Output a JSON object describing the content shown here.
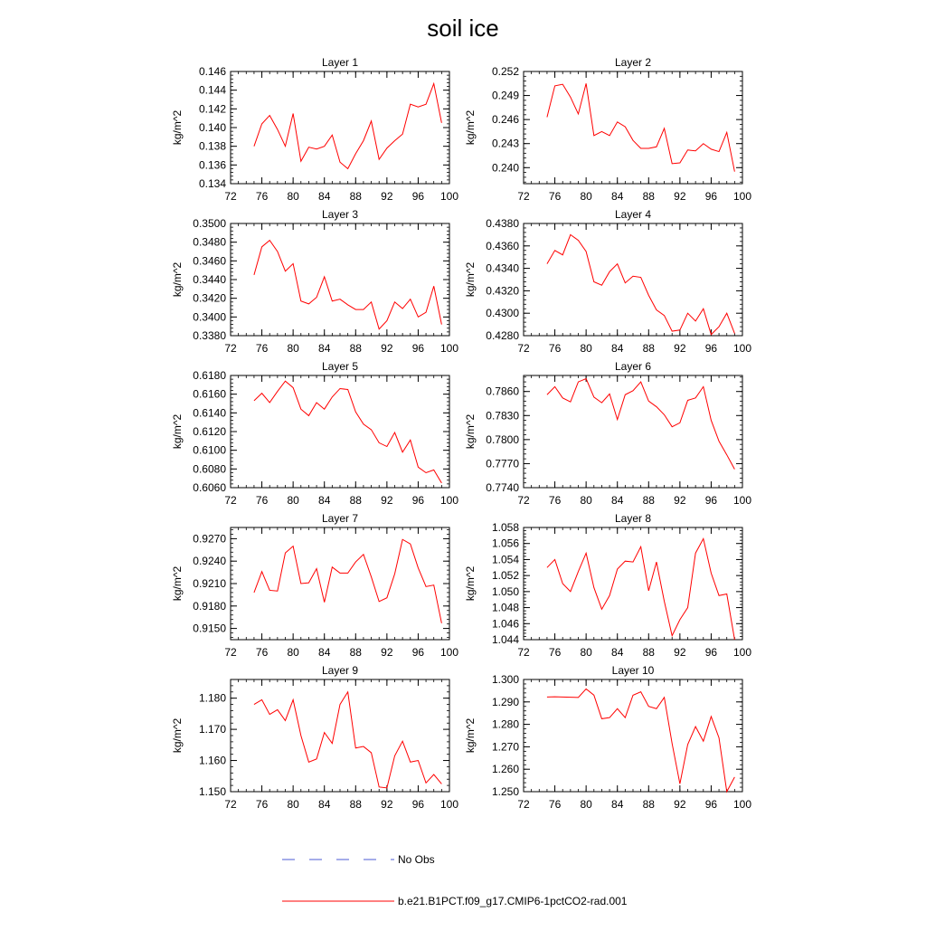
{
  "figure": {
    "title": "soil ice"
  },
  "legend": {
    "items": [
      {
        "label": "No Obs",
        "color": "#4b5bd6",
        "dash": "dashed"
      },
      {
        "label": "b.e21.B1PCT.f09_g17.CMIP6-1pctCO2-rad.001",
        "color": "#ff0000",
        "dash": "solid"
      }
    ]
  },
  "chart_data": [
    {
      "type": "line",
      "title": "Layer 1",
      "ylabel": "kg/m^2",
      "xlim": [
        72,
        100
      ],
      "ylim": [
        0.134,
        0.146
      ],
      "xticks": [
        72,
        76,
        80,
        84,
        88,
        92,
        96,
        100
      ],
      "xtick_labels": [
        "72",
        "76",
        "80",
        "84",
        "88",
        "92",
        "96",
        "100"
      ],
      "yticks": [
        0.134,
        0.136,
        0.138,
        0.14,
        0.142,
        0.144,
        0.146
      ],
      "ytick_labels": [
        "0.134",
        "0.136",
        "0.138",
        "0.140",
        "0.142",
        "0.144",
        "0.146"
      ],
      "x": [
        75,
        76,
        77,
        78,
        79,
        80,
        81,
        82,
        83,
        84,
        85,
        86,
        87,
        88,
        89,
        90,
        91,
        92,
        93,
        94,
        95,
        96,
        97,
        98,
        99
      ],
      "series": [
        {
          "name": "b.e21.B1PCT.f09_g17.CMIP6-1pctCO2-rad.001",
          "color": "#ff0000",
          "values": [
            0.138,
            0.1404,
            0.1413,
            0.1398,
            0.138,
            0.1415,
            0.1364,
            0.1379,
            0.1377,
            0.138,
            0.1392,
            0.1363,
            0.1356,
            0.1372,
            0.1386,
            0.1407,
            0.1366,
            0.1378,
            0.1386,
            0.1393,
            0.1425,
            0.1422,
            0.1425,
            0.1447,
            0.1405
          ]
        }
      ]
    },
    {
      "type": "line",
      "title": "Layer 2",
      "ylabel": "kg/m^2",
      "xlim": [
        72,
        100
      ],
      "ylim": [
        0.238,
        0.252
      ],
      "xticks": [
        72,
        76,
        80,
        84,
        88,
        92,
        96,
        100
      ],
      "xtick_labels": [
        "72",
        "76",
        "80",
        "84",
        "88",
        "92",
        "96",
        "100"
      ],
      "yticks": [
        0.24,
        0.243,
        0.246,
        0.249,
        0.252
      ],
      "ytick_labels": [
        "0.240",
        "0.243",
        "0.246",
        "0.249",
        "0.252"
      ],
      "x": [
        75,
        76,
        77,
        78,
        79,
        80,
        81,
        82,
        83,
        84,
        85,
        86,
        87,
        88,
        89,
        90,
        91,
        92,
        93,
        94,
        95,
        96,
        97,
        98,
        99
      ],
      "series": [
        {
          "name": "b.e21.B1PCT.f09_g17.CMIP6-1pctCO2-rad.001",
          "color": "#ff0000",
          "values": [
            0.2463,
            0.2502,
            0.2504,
            0.2488,
            0.2467,
            0.2505,
            0.244,
            0.2445,
            0.244,
            0.2457,
            0.2451,
            0.2434,
            0.2424,
            0.2424,
            0.2426,
            0.2449,
            0.2405,
            0.2406,
            0.2422,
            0.2421,
            0.243,
            0.2423,
            0.242,
            0.2444,
            0.2395
          ]
        }
      ]
    },
    {
      "type": "line",
      "title": "Layer 3",
      "ylabel": "kg/m^2",
      "xlim": [
        72,
        100
      ],
      "ylim": [
        0.338,
        0.35
      ],
      "xticks": [
        72,
        76,
        80,
        84,
        88,
        92,
        96,
        100
      ],
      "xtick_labels": [
        "72",
        "76",
        "80",
        "84",
        "88",
        "92",
        "96",
        "100"
      ],
      "yticks": [
        0.338,
        0.34,
        0.342,
        0.344,
        0.346,
        0.348,
        0.35
      ],
      "ytick_labels": [
        "0.3380",
        "0.3400",
        "0.3420",
        "0.3440",
        "0.3460",
        "0.3480",
        "0.3500"
      ],
      "x": [
        75,
        76,
        77,
        78,
        79,
        80,
        81,
        82,
        83,
        84,
        85,
        86,
        87,
        88,
        89,
        90,
        91,
        92,
        93,
        94,
        95,
        96,
        97,
        98,
        99
      ],
      "series": [
        {
          "name": "b.e21.B1PCT.f09_g17.CMIP6-1pctCO2-rad.001",
          "color": "#ff0000",
          "values": [
            0.3445,
            0.3475,
            0.3482,
            0.347,
            0.3449,
            0.3457,
            0.3417,
            0.3414,
            0.3421,
            0.3443,
            0.3417,
            0.3419,
            0.3413,
            0.3408,
            0.3408,
            0.3416,
            0.3387,
            0.3396,
            0.3416,
            0.3409,
            0.3419,
            0.34,
            0.3405,
            0.3433,
            0.3392
          ]
        }
      ]
    },
    {
      "type": "line",
      "title": "Layer 4",
      "ylabel": "kg/m^2",
      "xlim": [
        72,
        100
      ],
      "ylim": [
        0.428,
        0.438
      ],
      "xticks": [
        72,
        76,
        80,
        84,
        88,
        92,
        96,
        100
      ],
      "xtick_labels": [
        "72",
        "76",
        "80",
        "84",
        "88",
        "92",
        "96",
        "100"
      ],
      "yticks": [
        0.428,
        0.43,
        0.432,
        0.434,
        0.436,
        0.438
      ],
      "ytick_labels": [
        "0.4280",
        "0.4300",
        "0.4320",
        "0.4340",
        "0.4360",
        "0.4380"
      ],
      "x": [
        75,
        76,
        77,
        78,
        79,
        80,
        81,
        82,
        83,
        84,
        85,
        86,
        87,
        88,
        89,
        90,
        91,
        92,
        93,
        94,
        95,
        96,
        97,
        98,
        99
      ],
      "series": [
        {
          "name": "b.e21.B1PCT.f09_g17.CMIP6-1pctCO2-rad.001",
          "color": "#ff0000",
          "values": [
            0.4344,
            0.4356,
            0.4352,
            0.437,
            0.4365,
            0.4355,
            0.4328,
            0.4325,
            0.4337,
            0.4344,
            0.4327,
            0.4333,
            0.4332,
            0.4316,
            0.4303,
            0.4298,
            0.4284,
            0.4285,
            0.43,
            0.4293,
            0.4304,
            0.4281,
            0.4288,
            0.43,
            0.4282
          ]
        }
      ]
    },
    {
      "type": "line",
      "title": "Layer 5",
      "ylabel": "kg/m^2",
      "xlim": [
        72,
        100
      ],
      "ylim": [
        0.606,
        0.618
      ],
      "xticks": [
        72,
        76,
        80,
        84,
        88,
        92,
        96,
        100
      ],
      "xtick_labels": [
        "72",
        "76",
        "80",
        "84",
        "88",
        "92",
        "96",
        "100"
      ],
      "yticks": [
        0.606,
        0.608,
        0.61,
        0.612,
        0.614,
        0.616,
        0.618
      ],
      "ytick_labels": [
        "0.6060",
        "0.6080",
        "0.6100",
        "0.6120",
        "0.6140",
        "0.6160",
        "0.6180"
      ],
      "x": [
        75,
        76,
        77,
        78,
        79,
        80,
        81,
        82,
        83,
        84,
        85,
        86,
        87,
        88,
        89,
        90,
        91,
        92,
        93,
        94,
        95,
        96,
        97,
        98,
        99
      ],
      "series": [
        {
          "name": "b.e21.B1PCT.f09_g17.CMIP6-1pctCO2-rad.001",
          "color": "#ff0000",
          "values": [
            0.6153,
            0.6161,
            0.6151,
            0.6163,
            0.6174,
            0.6167,
            0.6144,
            0.6137,
            0.6151,
            0.6144,
            0.6157,
            0.6166,
            0.6165,
            0.6141,
            0.6128,
            0.6122,
            0.6108,
            0.6104,
            0.6119,
            0.6098,
            0.6111,
            0.6082,
            0.6076,
            0.6079,
            0.6065
          ]
        }
      ]
    },
    {
      "type": "line",
      "title": "Layer 6",
      "ylabel": "kg/m^2",
      "xlim": [
        72,
        100
      ],
      "ylim": [
        0.774,
        0.788
      ],
      "xticks": [
        72,
        76,
        80,
        84,
        88,
        92,
        96,
        100
      ],
      "xtick_labels": [
        "72",
        "76",
        "80",
        "84",
        "88",
        "92",
        "96",
        "100"
      ],
      "yticks": [
        0.774,
        0.777,
        0.78,
        0.783,
        0.786
      ],
      "ytick_labels": [
        "0.7740",
        "0.7770",
        "0.7800",
        "0.7830",
        "0.7860"
      ],
      "x": [
        75,
        76,
        77,
        78,
        79,
        80,
        81,
        82,
        83,
        84,
        85,
        86,
        87,
        88,
        89,
        90,
        91,
        92,
        93,
        94,
        95,
        96,
        97,
        98,
        99
      ],
      "series": [
        {
          "name": "b.e21.B1PCT.f09_g17.CMIP6-1pctCO2-rad.001",
          "color": "#ff0000",
          "values": [
            0.7856,
            0.7866,
            0.7852,
            0.7847,
            0.7872,
            0.7876,
            0.7853,
            0.7846,
            0.7857,
            0.7825,
            0.7856,
            0.7861,
            0.7872,
            0.7848,
            0.7841,
            0.7831,
            0.7816,
            0.7821,
            0.7849,
            0.7852,
            0.7866,
            0.7824,
            0.7798,
            0.7781,
            0.7763
          ]
        }
      ]
    },
    {
      "type": "line",
      "title": "Layer 7",
      "ylabel": "kg/m^2",
      "xlim": [
        72,
        100
      ],
      "ylim": [
        0.9135,
        0.9285
      ],
      "xticks": [
        72,
        76,
        80,
        84,
        88,
        92,
        96,
        100
      ],
      "xtick_labels": [
        "72",
        "76",
        "80",
        "84",
        "88",
        "92",
        "96",
        "100"
      ],
      "yticks": [
        0.915,
        0.918,
        0.921,
        0.924,
        0.927
      ],
      "ytick_labels": [
        "0.9150",
        "0.9180",
        "0.9210",
        "0.9240",
        "0.9270"
      ],
      "x": [
        75,
        76,
        77,
        78,
        79,
        80,
        81,
        82,
        83,
        84,
        85,
        86,
        87,
        88,
        89,
        90,
        91,
        92,
        93,
        94,
        95,
        96,
        97,
        98,
        99
      ],
      "series": [
        {
          "name": "b.e21.B1PCT.f09_g17.CMIP6-1pctCO2-rad.001",
          "color": "#ff0000",
          "values": [
            0.9198,
            0.9226,
            0.9201,
            0.92,
            0.9251,
            0.926,
            0.921,
            0.9211,
            0.923,
            0.9185,
            0.9232,
            0.9224,
            0.9224,
            0.9239,
            0.9249,
            0.9219,
            0.9186,
            0.9191,
            0.9223,
            0.9269,
            0.9263,
            0.9231,
            0.9206,
            0.9208,
            0.9157
          ]
        }
      ]
    },
    {
      "type": "line",
      "title": "Layer 8",
      "ylabel": "kg/m^2",
      "xlim": [
        72,
        100
      ],
      "ylim": [
        1.044,
        1.058
      ],
      "xticks": [
        72,
        76,
        80,
        84,
        88,
        92,
        96,
        100
      ],
      "xtick_labels": [
        "72",
        "76",
        "80",
        "84",
        "88",
        "92",
        "96",
        "100"
      ],
      "yticks": [
        1.044,
        1.046,
        1.048,
        1.05,
        1.052,
        1.054,
        1.056,
        1.058
      ],
      "ytick_labels": [
        "1.044",
        "1.046",
        "1.048",
        "1.050",
        "1.052",
        "1.054",
        "1.056",
        "1.058"
      ],
      "x": [
        75,
        76,
        77,
        78,
        79,
        80,
        81,
        82,
        83,
        84,
        85,
        86,
        87,
        88,
        89,
        90,
        91,
        92,
        93,
        94,
        95,
        96,
        97,
        98,
        99
      ],
      "series": [
        {
          "name": "b.e21.B1PCT.f09_g17.CMIP6-1pctCO2-rad.001",
          "color": "#ff0000",
          "values": [
            1.053,
            1.054,
            1.051,
            1.05,
            1.0525,
            1.0548,
            1.0505,
            1.0478,
            1.0495,
            1.0528,
            1.0538,
            1.0537,
            1.0556,
            1.0501,
            1.0537,
            1.0488,
            1.0445,
            1.0465,
            1.048,
            1.0548,
            1.0566,
            1.0523,
            1.0495,
            1.0497,
            1.044
          ]
        }
      ]
    },
    {
      "type": "line",
      "title": "Layer 9",
      "ylabel": "kg/m^2",
      "xlim": [
        72,
        100
      ],
      "ylim": [
        1.15,
        1.186
      ],
      "xticks": [
        72,
        76,
        80,
        84,
        88,
        92,
        96,
        100
      ],
      "xtick_labels": [
        "72",
        "76",
        "80",
        "84",
        "88",
        "92",
        "96",
        "100"
      ],
      "yticks": [
        1.15,
        1.16,
        1.17,
        1.18
      ],
      "ytick_labels": [
        "1.150",
        "1.160",
        "1.170",
        "1.180"
      ],
      "x": [
        75,
        76,
        77,
        78,
        79,
        80,
        81,
        82,
        83,
        84,
        85,
        86,
        87,
        88,
        89,
        90,
        91,
        92,
        93,
        94,
        95,
        96,
        97,
        98,
        99
      ],
      "series": [
        {
          "name": "b.e21.B1PCT.f09_g17.CMIP6-1pctCO2-rad.001",
          "color": "#ff0000",
          "values": [
            1.178,
            1.1795,
            1.1748,
            1.1763,
            1.1728,
            1.1795,
            1.168,
            1.1595,
            1.1605,
            1.169,
            1.1655,
            1.178,
            1.182,
            1.164,
            1.1645,
            1.1625,
            1.1515,
            1.1512,
            1.1615,
            1.1662,
            1.1595,
            1.16,
            1.1528,
            1.1555,
            1.1525
          ]
        }
      ]
    },
    {
      "type": "line",
      "title": "Layer 10",
      "ylabel": "kg/m^2",
      "xlim": [
        72,
        100
      ],
      "ylim": [
        1.25,
        1.3
      ],
      "xticks": [
        72,
        76,
        80,
        84,
        88,
        92,
        96,
        100
      ],
      "xtick_labels": [
        "72",
        "76",
        "80",
        "84",
        "88",
        "92",
        "96",
        "100"
      ],
      "yticks": [
        1.25,
        1.26,
        1.27,
        1.28,
        1.29,
        1.3
      ],
      "ytick_labels": [
        "1.250",
        "1.260",
        "1.270",
        "1.280",
        "1.290",
        "1.300"
      ],
      "x": [
        75,
        76,
        77,
        78,
        79,
        80,
        81,
        82,
        83,
        84,
        85,
        86,
        87,
        88,
        89,
        90,
        91,
        92,
        93,
        94,
        95,
        96,
        97,
        98,
        99
      ],
      "series": [
        {
          "name": "b.e21.B1PCT.f09_g17.CMIP6-1pctCO2-rad.001",
          "color": "#ff0000",
          "values": [
            1.2922,
            1.2923,
            1.2922,
            1.2921,
            1.292,
            1.2958,
            1.293,
            1.2825,
            1.283,
            1.287,
            1.283,
            1.293,
            1.2945,
            1.288,
            1.287,
            1.292,
            1.2715,
            1.2535,
            1.271,
            1.279,
            1.2725,
            1.2835,
            1.274,
            1.25,
            1.2565
          ]
        }
      ]
    }
  ]
}
